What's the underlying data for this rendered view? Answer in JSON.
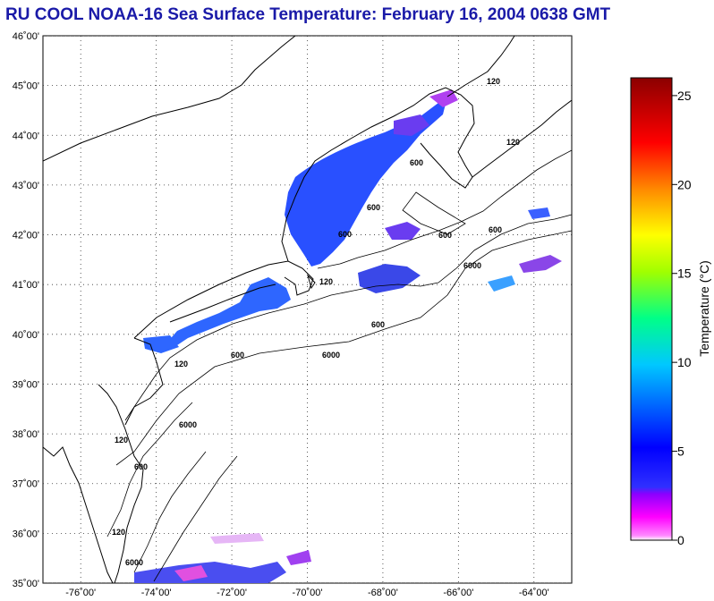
{
  "title": "RU COOL  NOAA-16  Sea Surface Temperature:  February 16, 2004 0638 GMT",
  "map": {
    "lon_range": [
      -77,
      -63
    ],
    "lat_range": [
      35,
      46
    ],
    "lat_ticks": [
      {
        "lat": 46,
        "label": "46˚00'"
      },
      {
        "lat": 45,
        "label": "45˚00'"
      },
      {
        "lat": 44,
        "label": "44˚00'"
      },
      {
        "lat": 43,
        "label": "43˚00'"
      },
      {
        "lat": 42,
        "label": "42˚00'"
      },
      {
        "lat": 41,
        "label": "41˚00'"
      },
      {
        "lat": 40,
        "label": "40˚00'"
      },
      {
        "lat": 39,
        "label": "39˚00'"
      },
      {
        "lat": 38,
        "label": "38˚00'"
      },
      {
        "lat": 37,
        "label": "37˚00'"
      },
      {
        "lat": 36,
        "label": "36˚00'"
      },
      {
        "lat": 35,
        "label": "35˚00'"
      }
    ],
    "lon_ticks": [
      {
        "lon": -76,
        "label": "-76˚00'"
      },
      {
        "lon": -74,
        "label": "-74˚00'"
      },
      {
        "lon": -72,
        "label": "-72˚00'"
      },
      {
        "lon": -70,
        "label": "-70˚00'"
      },
      {
        "lon": -68,
        "label": "-68˚00'"
      },
      {
        "lon": -66,
        "label": "-66˚00'"
      },
      {
        "lon": -64,
        "label": "-64˚00'"
      }
    ],
    "contour_labels": [
      "120",
      "600",
      "6000"
    ]
  },
  "colorbar": {
    "label": "Temperature (°C)",
    "range": [
      0,
      26
    ],
    "ticks": [
      "0",
      "5",
      "10",
      "15",
      "20",
      "25"
    ],
    "colors": [
      "#ffffff",
      "#ff44ff",
      "#8b00ff",
      "#0000ff",
      "#00c8ff",
      "#00ff88",
      "#a0ff00",
      "#ffff00",
      "#ff8800",
      "#ff0000",
      "#8b0000"
    ]
  }
}
